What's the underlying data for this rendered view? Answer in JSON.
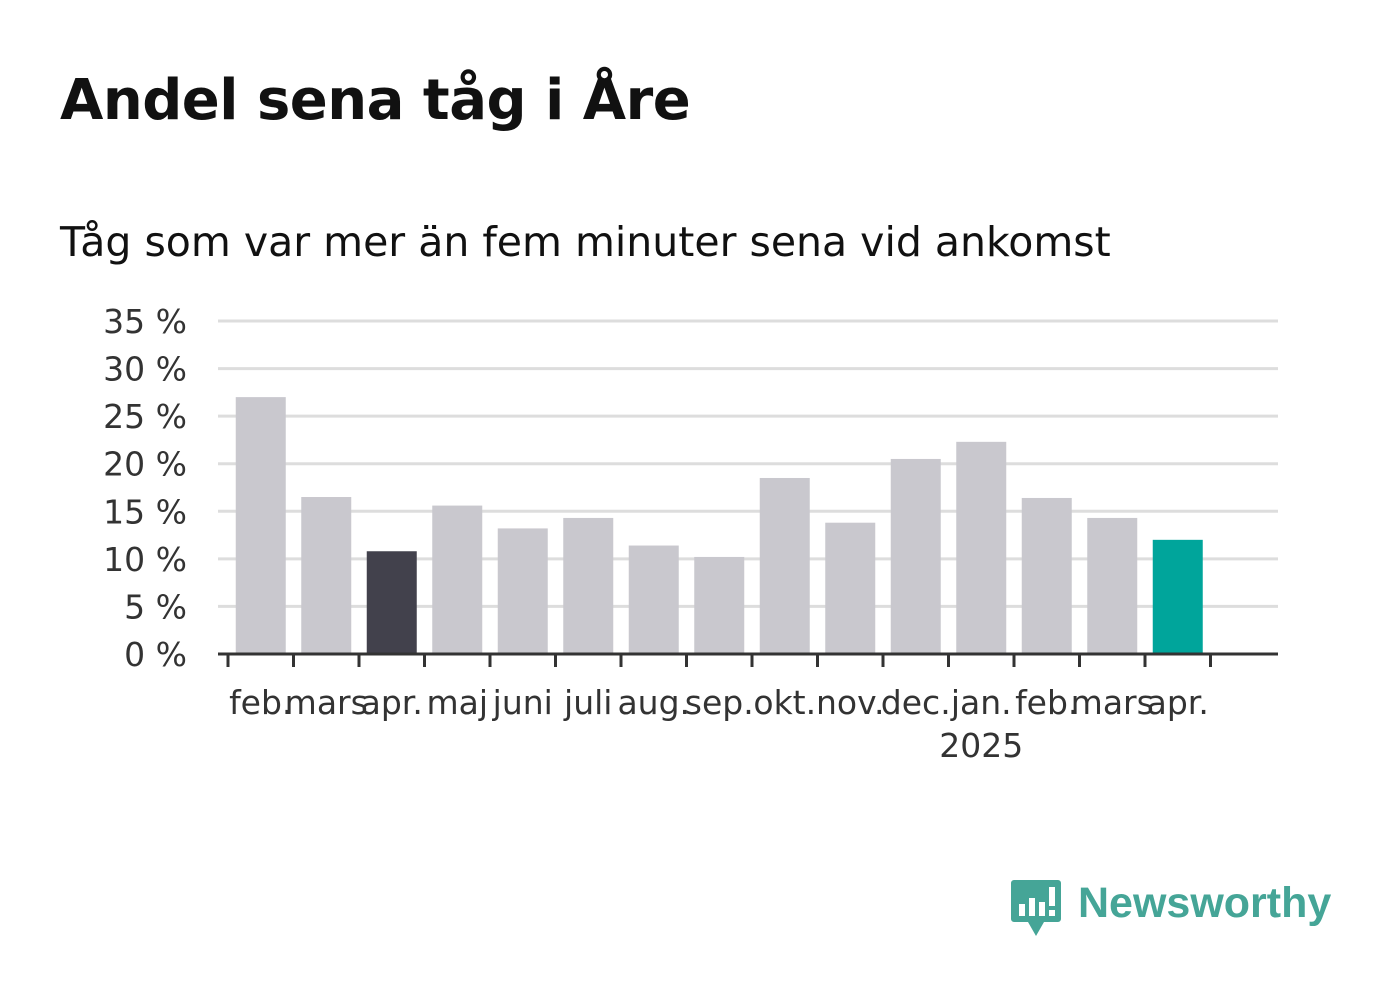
{
  "title": "Andel sena tåg i Åre",
  "subtitle": "Tåg som var mer än fem minuter sena vid ankomst",
  "brand": {
    "name": "Newsworthy",
    "icon": "newsworthy-logo-icon",
    "color": "#45a597"
  },
  "colors": {
    "default_bar": "#c9c8ce",
    "highlight_prev_year": "#42414c",
    "highlight_current": "#00a59b",
    "grid": "#dddddd",
    "axis": "#333333"
  },
  "chart_data": {
    "type": "bar",
    "title": "Andel sena tåg i Åre",
    "subtitle": "Tåg som var mer än fem minuter sena vid ankomst",
    "xlabel": "",
    "ylabel": "",
    "categories": [
      "feb.",
      "mars",
      "apr.",
      "maj",
      "juni",
      "juli",
      "aug.",
      "sep.",
      "okt.",
      "nov.",
      "dec.",
      "jan.",
      "feb.",
      "mars",
      "apr."
    ],
    "year_labels": [
      {
        "category_index": 11,
        "label": "2025"
      }
    ],
    "values": [
      27.0,
      16.5,
      10.8,
      15.6,
      13.2,
      14.3,
      11.4,
      10.2,
      18.5,
      13.8,
      20.5,
      22.3,
      16.4,
      14.3,
      12.0
    ],
    "bar_colors": [
      "#c9c8ce",
      "#c9c8ce",
      "#42414c",
      "#c9c8ce",
      "#c9c8ce",
      "#c9c8ce",
      "#c9c8ce",
      "#c9c8ce",
      "#c9c8ce",
      "#c9c8ce",
      "#c9c8ce",
      "#c9c8ce",
      "#c9c8ce",
      "#c9c8ce",
      "#00a59b"
    ],
    "ylim": [
      0,
      35
    ],
    "yticks": [
      0,
      5,
      10,
      15,
      20,
      25,
      30,
      35
    ],
    "ytick_labels": [
      "0 %",
      "5 %",
      "10 %",
      "15 %",
      "20 %",
      "25 %",
      "30 %",
      "35 %"
    ],
    "grid": true,
    "legend": "none"
  }
}
